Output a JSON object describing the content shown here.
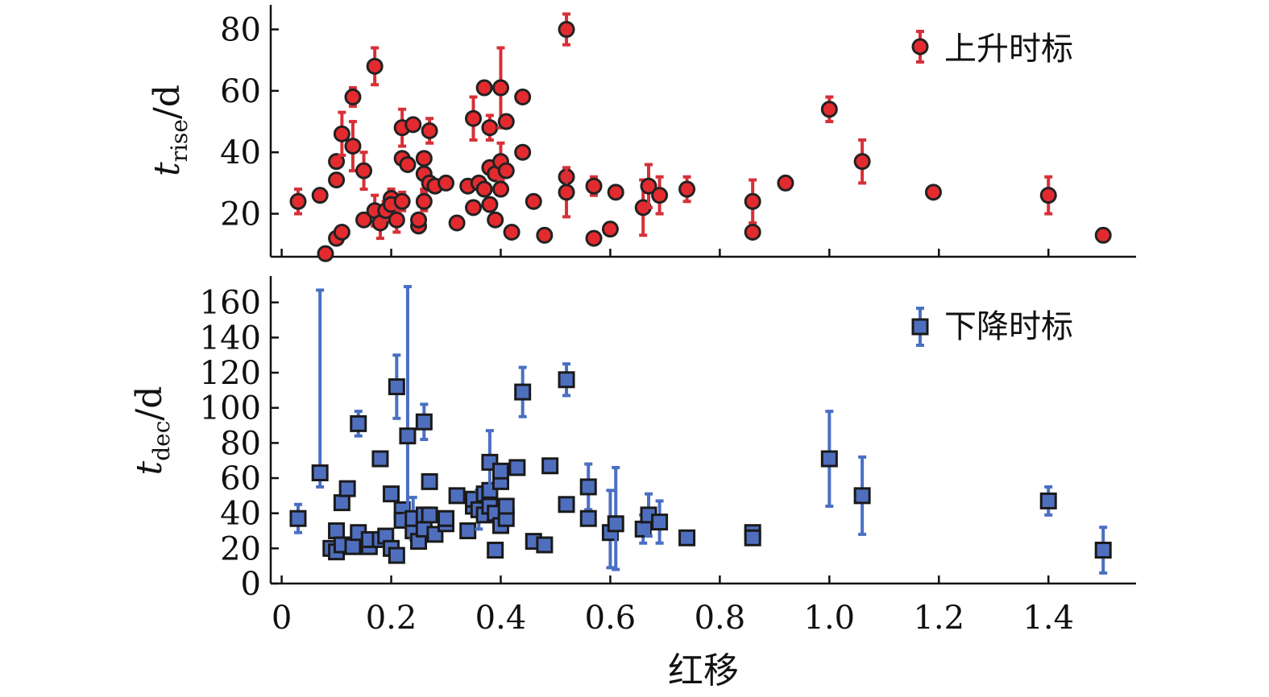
{
  "chart_data": [
    {
      "type": "scatter",
      "panel": "top",
      "ylabel": {
        "base": "t",
        "sub": "rise",
        "unit": "/d"
      },
      "xlim": [
        -0.02,
        1.56
      ],
      "ylim": [
        6,
        88
      ],
      "yticks": [
        20,
        40,
        60,
        80
      ],
      "grid": false,
      "legend_position": "top-right",
      "colors": {
        "marker": "#e32b2f",
        "error": "#d63038",
        "edge": "#222222"
      },
      "series": [
        {
          "name": "上升时标",
          "marker": "circle",
          "points": [
            {
              "x": 0.03,
              "y": 24,
              "err": 4
            },
            {
              "x": 0.07,
              "y": 26,
              "err": 0
            },
            {
              "x": 0.08,
              "y": 7,
              "err": 0
            },
            {
              "x": 0.1,
              "y": 12,
              "err": 0
            },
            {
              "x": 0.1,
              "y": 31,
              "err": 0
            },
            {
              "x": 0.1,
              "y": 37,
              "err": 0
            },
            {
              "x": 0.11,
              "y": 14,
              "err": 0
            },
            {
              "x": 0.11,
              "y": 46,
              "err": 7
            },
            {
              "x": 0.13,
              "y": 58,
              "err": 3
            },
            {
              "x": 0.13,
              "y": 42,
              "err": 8
            },
            {
              "x": 0.15,
              "y": 34,
              "err": 6
            },
            {
              "x": 0.15,
              "y": 18,
              "err": 0
            },
            {
              "x": 0.17,
              "y": 21,
              "err": 5
            },
            {
              "x": 0.17,
              "y": 68,
              "err": 6
            },
            {
              "x": 0.18,
              "y": 17,
              "err": 5
            },
            {
              "x": 0.19,
              "y": 21,
              "err": 3
            },
            {
              "x": 0.2,
              "y": 25,
              "err": 3
            },
            {
              "x": 0.2,
              "y": 23,
              "err": 0
            },
            {
              "x": 0.21,
              "y": 18,
              "err": 4
            },
            {
              "x": 0.22,
              "y": 24,
              "err": 3
            },
            {
              "x": 0.22,
              "y": 38,
              "err": 0
            },
            {
              "x": 0.22,
              "y": 48,
              "err": 6
            },
            {
              "x": 0.23,
              "y": 36,
              "err": 0
            },
            {
              "x": 0.24,
              "y": 49,
              "err": 0
            },
            {
              "x": 0.25,
              "y": 16,
              "err": 0
            },
            {
              "x": 0.25,
              "y": 18,
              "err": 0
            },
            {
              "x": 0.26,
              "y": 24,
              "err": 3
            },
            {
              "x": 0.26,
              "y": 33,
              "err": 5
            },
            {
              "x": 0.26,
              "y": 38,
              "err": 0
            },
            {
              "x": 0.27,
              "y": 47,
              "err": 4
            },
            {
              "x": 0.27,
              "y": 30,
              "err": 0
            },
            {
              "x": 0.28,
              "y": 29,
              "err": 0
            },
            {
              "x": 0.3,
              "y": 30,
              "err": 0
            },
            {
              "x": 0.32,
              "y": 17,
              "err": 0
            },
            {
              "x": 0.34,
              "y": 29,
              "err": 0
            },
            {
              "x": 0.35,
              "y": 22,
              "err": 0
            },
            {
              "x": 0.35,
              "y": 51,
              "err": 7
            },
            {
              "x": 0.36,
              "y": 30,
              "err": 0
            },
            {
              "x": 0.37,
              "y": 28,
              "err": 0
            },
            {
              "x": 0.37,
              "y": 61,
              "err": 0
            },
            {
              "x": 0.38,
              "y": 23,
              "err": 0
            },
            {
              "x": 0.38,
              "y": 35,
              "err": 0
            },
            {
              "x": 0.38,
              "y": 48,
              "err": 4
            },
            {
              "x": 0.39,
              "y": 18,
              "err": 0
            },
            {
              "x": 0.39,
              "y": 33,
              "err": 0
            },
            {
              "x": 0.4,
              "y": 37,
              "err": 6
            },
            {
              "x": 0.4,
              "y": 61,
              "err": 13
            },
            {
              "x": 0.4,
              "y": 28,
              "err": 0
            },
            {
              "x": 0.41,
              "y": 34,
              "err": 0
            },
            {
              "x": 0.41,
              "y": 50,
              "err": 0
            },
            {
              "x": 0.42,
              "y": 14,
              "err": 0
            },
            {
              "x": 0.44,
              "y": 40,
              "err": 0
            },
            {
              "x": 0.44,
              "y": 58,
              "err": 0
            },
            {
              "x": 0.46,
              "y": 24,
              "err": 0
            },
            {
              "x": 0.48,
              "y": 13,
              "err": 0
            },
            {
              "x": 0.52,
              "y": 80,
              "err": 5
            },
            {
              "x": 0.52,
              "y": 32,
              "err": 0
            },
            {
              "x": 0.52,
              "y": 27,
              "err": 8
            },
            {
              "x": 0.57,
              "y": 29,
              "err": 3
            },
            {
              "x": 0.57,
              "y": 12,
              "err": 0
            },
            {
              "x": 0.6,
              "y": 15,
              "err": 0
            },
            {
              "x": 0.61,
              "y": 27,
              "err": 0
            },
            {
              "x": 0.66,
              "y": 22,
              "err": 9
            },
            {
              "x": 0.67,
              "y": 29,
              "err": 7
            },
            {
              "x": 0.69,
              "y": 26,
              "err": 6
            },
            {
              "x": 0.74,
              "y": 28,
              "err": 4
            },
            {
              "x": 0.86,
              "y": 24,
              "err": 7
            },
            {
              "x": 0.86,
              "y": 14,
              "err": 0
            },
            {
              "x": 0.92,
              "y": 30,
              "err": 2
            },
            {
              "x": 1.0,
              "y": 54,
              "err": 4
            },
            {
              "x": 1.06,
              "y": 37,
              "err": 7
            },
            {
              "x": 1.19,
              "y": 27,
              "err": 0
            },
            {
              "x": 1.4,
              "y": 26,
              "err": 6
            },
            {
              "x": 1.5,
              "y": 13,
              "err": 2
            }
          ]
        }
      ]
    },
    {
      "type": "scatter",
      "panel": "bottom",
      "xlabel": "红移",
      "ylabel": {
        "base": "t",
        "sub": "dec",
        "unit": "/d"
      },
      "xlim": [
        -0.02,
        1.56
      ],
      "ylim": [
        0,
        175
      ],
      "xticks": [
        0,
        0.2,
        0.4,
        0.6,
        0.8,
        1.0,
        1.2,
        1.4
      ],
      "xtick_labels": [
        "0",
        "0.2",
        "0.4",
        "0.6",
        "0.8",
        "1.0",
        "1.2",
        "1.4"
      ],
      "yticks": [
        0,
        20,
        40,
        60,
        80,
        100,
        120,
        140,
        160
      ],
      "grid": false,
      "legend_position": "top-right",
      "colors": {
        "marker": "#4f6fbe",
        "error": "#4a6fc3",
        "edge": "#1a1a1a"
      },
      "series": [
        {
          "name": "下降时标",
          "marker": "square",
          "points": [
            {
              "x": 0.03,
              "y": 37,
              "err": 8
            },
            {
              "x": 0.07,
              "y": 63,
              "err": 0,
              "err_up": 104,
              "err_down": 8
            },
            {
              "x": 0.09,
              "y": 20,
              "err": 0
            },
            {
              "x": 0.1,
              "y": 18,
              "err": 0
            },
            {
              "x": 0.1,
              "y": 30,
              "err": 0
            },
            {
              "x": 0.11,
              "y": 46,
              "err": 0
            },
            {
              "x": 0.11,
              "y": 22,
              "err": 0
            },
            {
              "x": 0.12,
              "y": 54,
              "err": 0
            },
            {
              "x": 0.13,
              "y": 21,
              "err": 0
            },
            {
              "x": 0.14,
              "y": 91,
              "err": 7
            },
            {
              "x": 0.14,
              "y": 29,
              "err": 0
            },
            {
              "x": 0.16,
              "y": 21,
              "err": 0
            },
            {
              "x": 0.16,
              "y": 25,
              "err": 0
            },
            {
              "x": 0.18,
              "y": 71,
              "err": 0
            },
            {
              "x": 0.18,
              "y": 25,
              "err": 0
            },
            {
              "x": 0.19,
              "y": 27,
              "err": 0
            },
            {
              "x": 0.2,
              "y": 20,
              "err": 0
            },
            {
              "x": 0.2,
              "y": 51,
              "err": 0
            },
            {
              "x": 0.21,
              "y": 16,
              "err": 0
            },
            {
              "x": 0.21,
              "y": 112,
              "err": 18
            },
            {
              "x": 0.22,
              "y": 42,
              "err": 0
            },
            {
              "x": 0.22,
              "y": 36,
              "err": 0
            },
            {
              "x": 0.23,
              "y": 84,
              "err": 0,
              "err_up": 85,
              "err_down": 45
            },
            {
              "x": 0.24,
              "y": 30,
              "err": 0
            },
            {
              "x": 0.24,
              "y": 37,
              "err": 12
            },
            {
              "x": 0.25,
              "y": 24,
              "err": 0
            },
            {
              "x": 0.26,
              "y": 31,
              "err": 0
            },
            {
              "x": 0.26,
              "y": 39,
              "err": 0
            },
            {
              "x": 0.26,
              "y": 92,
              "err": 10
            },
            {
              "x": 0.27,
              "y": 58,
              "err": 0
            },
            {
              "x": 0.27,
              "y": 39,
              "err": 0
            },
            {
              "x": 0.28,
              "y": 28,
              "err": 0
            },
            {
              "x": 0.3,
              "y": 34,
              "err": 0
            },
            {
              "x": 0.3,
              "y": 37,
              "err": 0
            },
            {
              "x": 0.32,
              "y": 50,
              "err": 0
            },
            {
              "x": 0.34,
              "y": 30,
              "err": 0
            },
            {
              "x": 0.35,
              "y": 44,
              "err": 0
            },
            {
              "x": 0.35,
              "y": 48,
              "err": 0
            },
            {
              "x": 0.36,
              "y": 42,
              "err": 11
            },
            {
              "x": 0.37,
              "y": 39,
              "err": 0
            },
            {
              "x": 0.37,
              "y": 51,
              "err": 0
            },
            {
              "x": 0.38,
              "y": 53,
              "err": 0
            },
            {
              "x": 0.38,
              "y": 69,
              "err": 18
            },
            {
              "x": 0.38,
              "y": 44,
              "err": 0
            },
            {
              "x": 0.39,
              "y": 19,
              "err": 0
            },
            {
              "x": 0.39,
              "y": 40,
              "err": 0
            },
            {
              "x": 0.4,
              "y": 33,
              "err": 0
            },
            {
              "x": 0.4,
              "y": 58,
              "err": 0
            },
            {
              "x": 0.4,
              "y": 64,
              "err": 0
            },
            {
              "x": 0.41,
              "y": 37,
              "err": 0
            },
            {
              "x": 0.41,
              "y": 44,
              "err": 0
            },
            {
              "x": 0.43,
              "y": 66,
              "err": 0
            },
            {
              "x": 0.44,
              "y": 109,
              "err": 14
            },
            {
              "x": 0.46,
              "y": 24,
              "err": 0
            },
            {
              "x": 0.48,
              "y": 22,
              "err": 0
            },
            {
              "x": 0.49,
              "y": 67,
              "err": 0
            },
            {
              "x": 0.52,
              "y": 116,
              "err": 9
            },
            {
              "x": 0.52,
              "y": 45,
              "err": 0
            },
            {
              "x": 0.56,
              "y": 55,
              "err": 13
            },
            {
              "x": 0.56,
              "y": 37,
              "err": 0
            },
            {
              "x": 0.6,
              "y": 29,
              "err": 0,
              "err_up": 24,
              "err_down": 20
            },
            {
              "x": 0.61,
              "y": 34,
              "err": 0,
              "err_up": 32,
              "err_down": 26
            },
            {
              "x": 0.66,
              "y": 31,
              "err": 8
            },
            {
              "x": 0.67,
              "y": 39,
              "err": 12
            },
            {
              "x": 0.69,
              "y": 35,
              "err": 12
            },
            {
              "x": 0.74,
              "y": 26,
              "err": 0
            },
            {
              "x": 0.86,
              "y": 29,
              "err": 0
            },
            {
              "x": 0.86,
              "y": 26,
              "err": 0
            },
            {
              "x": 1.0,
              "y": 71,
              "err": 27
            },
            {
              "x": 1.06,
              "y": 50,
              "err": 22
            },
            {
              "x": 1.4,
              "y": 47,
              "err": 8
            },
            {
              "x": 1.5,
              "y": 19,
              "err": 13
            }
          ]
        }
      ]
    }
  ]
}
